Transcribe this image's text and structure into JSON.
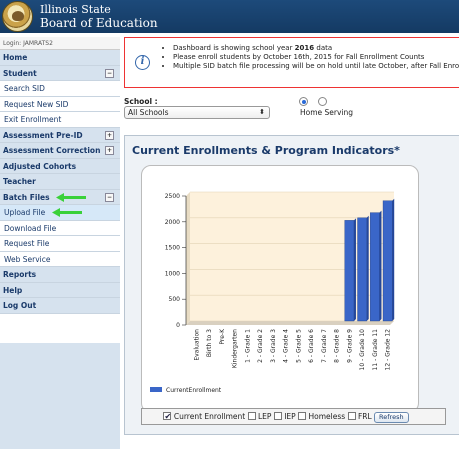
{
  "org": {
    "line1": "Illinois State",
    "line2": "Board of Education"
  },
  "login": "Login: JAMRATS2",
  "nav": [
    {
      "label": "Home",
      "kind": "head",
      "toggle": ""
    },
    {
      "label": "Student",
      "kind": "head",
      "toggle": "⊟"
    },
    {
      "label": "Search SID",
      "kind": "sub",
      "toggle": ""
    },
    {
      "label": "Request New SID",
      "kind": "sub",
      "toggle": ""
    },
    {
      "label": "Exit Enrollment",
      "kind": "sub",
      "toggle": ""
    },
    {
      "label": "Assessment Pre-ID",
      "kind": "head",
      "toggle": "⊞"
    },
    {
      "label": "Assessment Correction",
      "kind": "head",
      "toggle": "⊞"
    },
    {
      "label": "Adjusted Cohorts",
      "kind": "head",
      "toggle": ""
    },
    {
      "label": "Teacher",
      "kind": "head",
      "toggle": ""
    },
    {
      "label": "Batch Files",
      "kind": "head",
      "toggle": "⊟"
    },
    {
      "label": "Upload File",
      "kind": "sub",
      "toggle": ""
    },
    {
      "label": "Download File",
      "kind": "sub",
      "toggle": ""
    },
    {
      "label": "Request File",
      "kind": "sub",
      "toggle": ""
    },
    {
      "label": "Web Service",
      "kind": "sub",
      "toggle": ""
    },
    {
      "label": "Reports",
      "kind": "head",
      "toggle": ""
    },
    {
      "label": "Help",
      "kind": "head",
      "toggle": ""
    },
    {
      "label": "Log Out",
      "kind": "head",
      "toggle": ""
    }
  ],
  "notice": {
    "line1_pre": "Dashboard is showing school year ",
    "line1_year": "2016",
    "line1_post": " data",
    "line2": "Please enroll students by October 16th, 2015 for Fall Enrollment Counts",
    "line3": "Multiple SID batch file processing will be on hold until late October, after Fall Enro"
  },
  "school": {
    "label": "School :",
    "value": "All Schools",
    "radio_label": "Home Serving"
  },
  "panel": {
    "title": "Current Enrollments & Program Indicators*"
  },
  "filters": {
    "current_enrollment": "Current Enrollment",
    "lep": "LEP",
    "iep": "IEP",
    "homeless": "Homeless",
    "frl": "FRL",
    "refresh": "Refresh"
  },
  "colors": {
    "bar": "#3a66c8",
    "plot_bg": "#fdf1dc",
    "accent": "#1a3a6a",
    "arrow": "#3ad13a"
  },
  "chart_data": {
    "type": "bar",
    "categories": [
      "Evaluation",
      "Birth to 3",
      "Pre-K",
      "Kindergarten",
      "1 - Grade 1",
      "2 - Grade 2",
      "3 - Grade 3",
      "4 - Grade 4",
      "5 - Grade 5",
      "6 - Grade 6",
      "7 - Grade 7",
      "8 - Grade 8",
      "9 - Grade 9",
      "10 - Grade 10",
      "11 - Grade 11",
      "12 - Grade 12"
    ],
    "series": [
      {
        "name": "CurrentEnrollment",
        "values": [
          0,
          0,
          0,
          0,
          0,
          0,
          0,
          0,
          0,
          0,
          0,
          0,
          1950,
          2000,
          2100,
          2330
        ]
      }
    ],
    "yticks": [
      0,
      500,
      1000,
      1500,
      2000,
      2500
    ],
    "ylim": [
      0,
      2500
    ],
    "legend": "bottom-left"
  }
}
